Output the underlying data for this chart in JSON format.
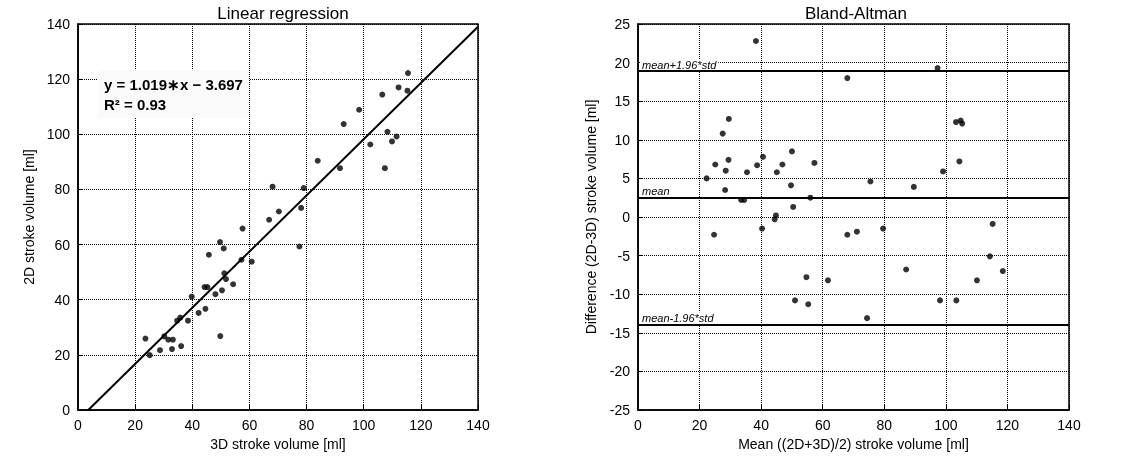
{
  "chart_data": [
    {
      "type": "scatter",
      "title": "Linear regression",
      "xlabel": "3D stroke volume [ml]",
      "ylabel": "2D stroke volume [ml]",
      "xlim": [
        0,
        140
      ],
      "xticks": [
        0,
        20,
        40,
        60,
        80,
        100,
        120,
        140
      ],
      "ylim": [
        0,
        140
      ],
      "yticks": [
        0,
        20,
        40,
        60,
        80,
        100,
        120,
        140
      ],
      "grid": true,
      "marker": "circle",
      "annotations": [
        "y = 1.019∗x − 3.697",
        "R² = 0.93"
      ],
      "series": [
        {
          "color": "#000000",
          "x": [
            23.6,
            25.1,
            28.7,
            30.2,
            31.6,
            33.2,
            32.9,
            36.1,
            34.7,
            35.8,
            38.5,
            39.8,
            42.2,
            44.6,
            44.3,
            45.3,
            45.8,
            48.1,
            49.7,
            51.0,
            50.4,
            49.8,
            51.2,
            51.8,
            54.3,
            57.2,
            57.6,
            60.8,
            66.9,
            70.3,
            78.1,
            77.5,
            68.1,
            79.0,
            83.9,
            91.7,
            93.0,
            98.4,
            102.3,
            106.5,
            107.4,
            108.3,
            109.9,
            111.5,
            112.2,
            115.5,
            115.3
          ],
          "values": [
            25.9,
            19.9,
            21.7,
            26.7,
            25.5,
            25.5,
            22.1,
            23.2,
            32.4,
            33.5,
            32.4,
            41.1,
            35.2,
            36.7,
            44.6,
            44.6,
            56.3,
            42.0,
            60.9,
            58.6,
            43.4,
            26.8,
            49.6,
            47.5,
            45.6,
            54.5,
            65.8,
            53.8,
            69.0,
            72.0,
            73.3,
            59.3,
            81.0,
            80.5,
            90.4,
            87.7,
            103.7,
            108.9,
            96.3,
            114.4,
            87.7,
            100.9,
            97.4,
            99.2,
            117.0,
            122.2,
            115.8
          ]
        },
        {
          "type": "line",
          "color": "#000000",
          "marker": "none",
          "x": [
            3.6,
            140
          ],
          "values": [
            0,
            139
          ]
        }
      ]
    },
    {
      "type": "scatter",
      "title": "Bland-Altman",
      "xlabel": "Mean ((2D+3D)/2) stroke volume [ml]",
      "ylabel": "Difference (2D-3D) stroke volume [ml]",
      "xlim": [
        0,
        140
      ],
      "xticks": [
        0,
        20,
        40,
        60,
        80,
        100,
        120,
        140
      ],
      "ylim": [
        -25,
        25
      ],
      "yticks": [
        -25,
        -20,
        -15,
        -10,
        -5,
        0,
        5,
        10,
        15,
        20,
        25
      ],
      "grid": true,
      "marker": "circle",
      "ref_lines": [
        {
          "axis": "y",
          "value": 18.9,
          "label": "mean+1.96*std",
          "color": "#000000"
        },
        {
          "axis": "y",
          "value": 2.5,
          "label": "mean",
          "color": "#000000"
        },
        {
          "axis": "y",
          "value": -13.9,
          "label": "mean-1.96*std",
          "color": "#000000"
        }
      ],
      "series": [
        {
          "color": "#000000",
          "x": [
            38.3,
            22.3,
            25.1,
            27.5,
            29.5,
            28.5,
            29.4,
            28.3,
            35.4,
            38.7,
            40.6,
            33.5,
            34.5,
            45.1,
            46.9,
            50.0,
            49.7,
            57.3,
            56.0,
            50.4,
            44.4,
            44.8,
            40.3,
            24.7,
            68.0,
            68.0,
            71.1,
            54.7,
            61.7,
            51.0,
            55.3,
            74.4,
            97.3,
            75.5,
            89.6,
            99.1,
            104.4,
            103.3,
            104.8,
            105.3,
            79.6,
            115.2,
            114.3,
            118.5,
            87.1,
            110.1,
            98.1,
            103.4
          ],
          "values": [
            22.8,
            5.0,
            6.8,
            10.8,
            12.7,
            6.0,
            7.4,
            3.5,
            5.8,
            6.7,
            7.8,
            2.2,
            2.2,
            5.8,
            6.8,
            8.5,
            4.1,
            7.0,
            2.5,
            1.3,
            -0.3,
            0.2,
            -1.5,
            -2.3,
            18.0,
            -2.3,
            -1.9,
            -7.8,
            -8.2,
            -10.8,
            -11.3,
            -13.1,
            19.3,
            4.6,
            3.9,
            5.9,
            7.2,
            12.3,
            12.5,
            12.1,
            -1.5,
            -0.9,
            -5.1,
            -7.0,
            -6.8,
            -8.2,
            -10.8,
            -10.8
          ]
        }
      ]
    }
  ]
}
